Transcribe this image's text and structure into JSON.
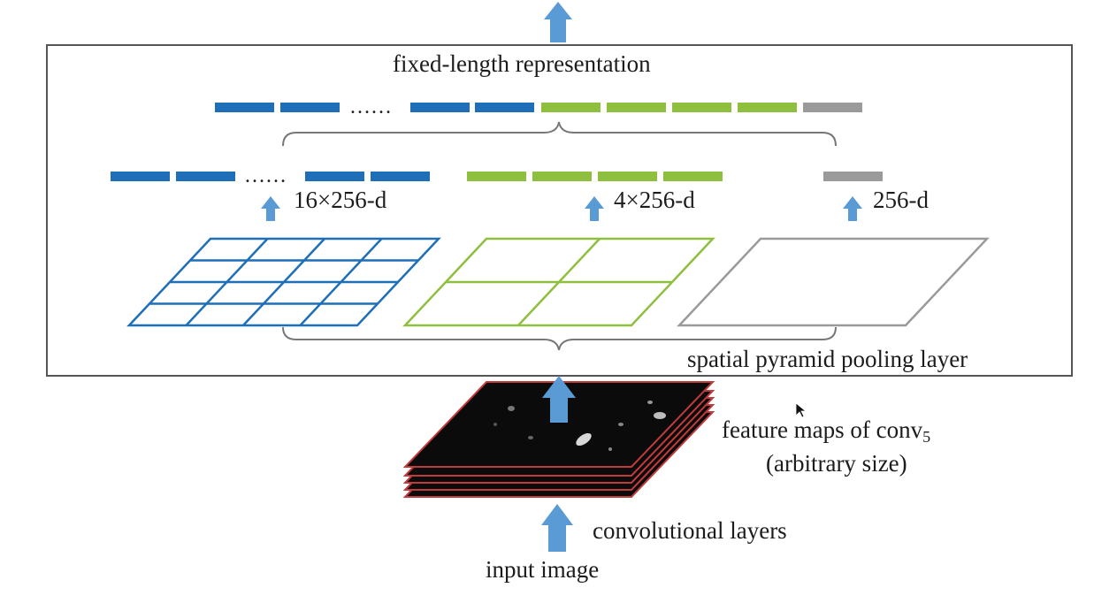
{
  "labels": {
    "fixed_length": "fixed-length representation",
    "level_16": "16×256-d",
    "level_4": "4×256-d",
    "level_1": "256-d",
    "spp_layer": "spatial pyramid pooling layer",
    "feature_maps": "feature maps of conv",
    "feature_maps_subscript": "5",
    "arbitrary_size": "(arbitrary size)",
    "conv_layers": "convolutional layers",
    "input_image": "input image"
  },
  "colors": {
    "blue": "#1f6fb8",
    "green": "#8fbf3f",
    "gray": "#9a9a9a",
    "arrow": "#5b9bd5",
    "feature_map_border": "#c23b3b",
    "feature_map_fill": "#0b0b0b",
    "frame": "#555555"
  },
  "pyramid_levels": [
    {
      "grid": 4,
      "color": "blue"
    },
    {
      "grid": 2,
      "color": "green"
    },
    {
      "grid": 1,
      "color": "gray"
    }
  ]
}
